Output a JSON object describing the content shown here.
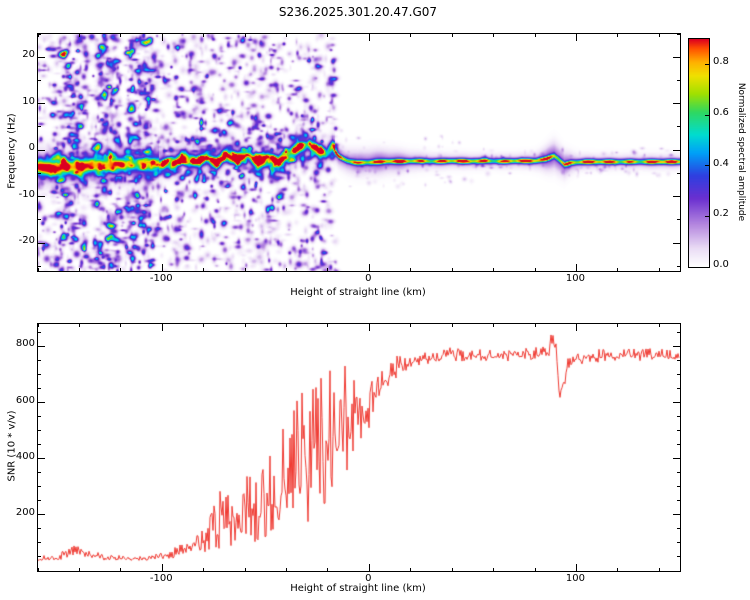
{
  "figure": {
    "title": "S236.2025.301.20.47.G07"
  },
  "chart_data": [
    {
      "type": "heatmap",
      "title": "S236.2025.301.20.47.G07",
      "xlabel": "Height of straight line (km)",
      "ylabel": "Frequency (Hz)",
      "xlim": [
        -160,
        150
      ],
      "ylim": [
        -26,
        25
      ],
      "xticks": [
        -100,
        0,
        100
      ],
      "yticks": [
        -20,
        -10,
        0,
        10,
        20
      ],
      "grid": false,
      "colorbar": {
        "label": "Normalized spectral amplitude",
        "ticks": [
          0,
          0.2,
          0.4,
          0.6,
          0.8
        ],
        "tick_labels": [
          "0.0",
          "0.2",
          "0.4",
          "0.6",
          "0.8"
        ],
        "vmin": 0,
        "vmax": 0.9,
        "colormap": [
          [
            0,
            "#ffffff"
          ],
          [
            0.08,
            "#eadcf5"
          ],
          [
            0.18,
            "#b78ae0"
          ],
          [
            0.3,
            "#6a2fd0"
          ],
          [
            0.4,
            "#2e3fe0"
          ],
          [
            0.5,
            "#00a0f8"
          ],
          [
            0.58,
            "#00dcd0"
          ],
          [
            0.68,
            "#30d860"
          ],
          [
            0.76,
            "#a0e000"
          ],
          [
            0.84,
            "#f0e000"
          ],
          [
            0.9,
            "#ffb000"
          ],
          [
            0.96,
            "#ff5000"
          ],
          [
            1,
            "#dc0020"
          ]
        ]
      },
      "ridge": [
        [
          -160,
          -3.5,
          0.88
        ],
        [
          -152,
          -3.7,
          0.92
        ],
        [
          -146,
          -3.4,
          0.8
        ],
        [
          -140,
          -3.5,
          0.72
        ],
        [
          -134,
          -3.2,
          0.85
        ],
        [
          -128,
          -3.4,
          0.8
        ],
        [
          -122,
          -3.1,
          0.62
        ],
        [
          -116,
          -3.0,
          0.7
        ],
        [
          -110,
          -2.9,
          0.55
        ],
        [
          -104,
          -2.7,
          0.6
        ],
        [
          -99,
          -2.4,
          0.5
        ],
        [
          -94,
          -2.8,
          0.65
        ],
        [
          -89,
          -1.8,
          0.75
        ],
        [
          -84,
          -2.6,
          0.6
        ],
        [
          -79,
          -1.2,
          0.7
        ],
        [
          -74,
          -2.8,
          0.78
        ],
        [
          -69,
          -1.0,
          0.62
        ],
        [
          -64,
          -2.2,
          0.8
        ],
        [
          -59,
          -0.8,
          0.66
        ],
        [
          -54,
          -2.0,
          0.82
        ],
        [
          -49,
          -1.2,
          0.7
        ],
        [
          -44,
          -2.4,
          0.78
        ],
        [
          -39,
          -0.8,
          0.64
        ],
        [
          -34,
          0.6,
          0.72
        ],
        [
          -29,
          1.6,
          0.66
        ],
        [
          -25,
          0.2,
          0.74
        ],
        [
          -21,
          -0.8,
          0.6
        ],
        [
          -18,
          0.4,
          0.7
        ],
        [
          -15,
          -1.2,
          0.8
        ],
        [
          -11,
          -2.2,
          0.86
        ],
        [
          -6,
          -2.6,
          0.8
        ],
        [
          0,
          -2.5,
          0.88
        ],
        [
          8,
          -2.3,
          0.82
        ],
        [
          16,
          -2.3,
          0.9
        ],
        [
          24,
          -2.2,
          0.84
        ],
        [
          32,
          -2.3,
          0.9
        ],
        [
          40,
          -2.2,
          0.85
        ],
        [
          48,
          -2.3,
          0.9
        ],
        [
          56,
          -2.2,
          0.86
        ],
        [
          64,
          -2.3,
          0.9
        ],
        [
          72,
          -2.2,
          0.85
        ],
        [
          80,
          -2.2,
          0.9
        ],
        [
          85,
          -1.8,
          0.84
        ],
        [
          89,
          -1.1,
          0.86
        ],
        [
          92,
          -2.2,
          0.8
        ],
        [
          94,
          -3.0,
          0.84
        ],
        [
          97,
          -2.6,
          0.88
        ],
        [
          104,
          -2.4,
          0.9
        ],
        [
          112,
          -2.4,
          0.85
        ],
        [
          120,
          -2.4,
          0.9
        ],
        [
          130,
          -2.4,
          0.86
        ],
        [
          140,
          -2.4,
          0.9
        ],
        [
          150,
          -2.4,
          0.87
        ]
      ],
      "chirps": [
        [
          -97,
          -5,
          34,
          0.013
        ],
        [
          -90,
          -6,
          37,
          0.013
        ],
        [
          -83,
          -5,
          40,
          0.013
        ],
        [
          -76,
          -6,
          40,
          0.014
        ],
        [
          -69,
          -5,
          42,
          0.013
        ],
        [
          -62,
          -6,
          40,
          0.014
        ],
        [
          -55,
          -5,
          38,
          0.014
        ],
        [
          -48,
          -5,
          34,
          0.015
        ],
        [
          -42,
          -4,
          30,
          0.015
        ]
      ],
      "noise_bands_km": [
        [
          -153,
          -137
        ],
        [
          -133,
          -121
        ],
        [
          -117,
          -104
        ]
      ],
      "noise_region_km": [
        -163,
        -16
      ]
    },
    {
      "type": "line",
      "xlabel": "Height of straight line (km)",
      "ylabel": "SNR (10 * v/v)",
      "xlim": [
        -160,
        150
      ],
      "ylim": [
        0,
        880
      ],
      "xticks": [
        -100,
        0,
        100
      ],
      "yticks": [
        200,
        400,
        600,
        800
      ],
      "color": "#f03b33",
      "points": [
        [
          -160,
          40,
          14
        ],
        [
          -152,
          44,
          14
        ],
        [
          -145,
          58,
          22
        ],
        [
          -140,
          72,
          28
        ],
        [
          -135,
          56,
          18
        ],
        [
          -128,
          46,
          14
        ],
        [
          -120,
          44,
          13
        ],
        [
          -112,
          44,
          13
        ],
        [
          -104,
          46,
          14
        ],
        [
          -97,
          52,
          18
        ],
        [
          -92,
          62,
          30
        ],
        [
          -87,
          80,
          45
        ],
        [
          -82,
          95,
          55
        ],
        [
          -77,
          110,
          90
        ],
        [
          -72,
          140,
          160
        ],
        [
          -68,
          170,
          230
        ],
        [
          -65,
          145,
          130
        ],
        [
          -61,
          165,
          150
        ],
        [
          -58,
          195,
          175
        ],
        [
          -55,
          180,
          150
        ],
        [
          -51,
          200,
          170
        ],
        [
          -48,
          245,
          200
        ],
        [
          -45,
          220,
          185
        ],
        [
          -42,
          275,
          250
        ],
        [
          -39,
          300,
          320
        ],
        [
          -36,
          320,
          355
        ],
        [
          -34,
          300,
          300
        ],
        [
          -31,
          345,
          355
        ],
        [
          -29,
          330,
          300
        ],
        [
          -27,
          375,
          340
        ],
        [
          -25,
          360,
          300
        ],
        [
          -23,
          400,
          340
        ],
        [
          -21,
          385,
          300
        ],
        [
          -19,
          420,
          305
        ],
        [
          -17,
          450,
          285
        ],
        [
          -15,
          430,
          255
        ],
        [
          -13,
          475,
          260
        ],
        [
          -11,
          500,
          255
        ],
        [
          -9,
          485,
          235
        ],
        [
          -7,
          520,
          225
        ],
        [
          -5,
          540,
          205
        ],
        [
          -3,
          560,
          185
        ],
        [
          -1,
          580,
          165
        ],
        [
          2,
          615,
          130
        ],
        [
          5,
          645,
          105
        ],
        [
          9,
          685,
          75
        ],
        [
          14,
          715,
          55
        ],
        [
          19,
          738,
          42
        ],
        [
          24,
          750,
          36
        ],
        [
          30,
          756,
          32
        ],
        [
          40,
          762,
          30
        ],
        [
          50,
          766,
          30
        ],
        [
          60,
          761,
          30
        ],
        [
          70,
          766,
          30
        ],
        [
          80,
          761,
          34
        ],
        [
          84,
          768,
          40
        ],
        [
          87,
          795,
          60
        ],
        [
          89,
          830,
          45
        ],
        [
          91,
          705,
          75
        ],
        [
          92,
          625,
          60
        ],
        [
          94,
          680,
          55
        ],
        [
          96,
          735,
          42
        ],
        [
          100,
          752,
          35
        ],
        [
          110,
          760,
          30
        ],
        [
          120,
          764,
          30
        ],
        [
          130,
          760,
          30
        ],
        [
          140,
          765,
          30
        ],
        [
          150,
          760,
          30
        ]
      ]
    }
  ]
}
